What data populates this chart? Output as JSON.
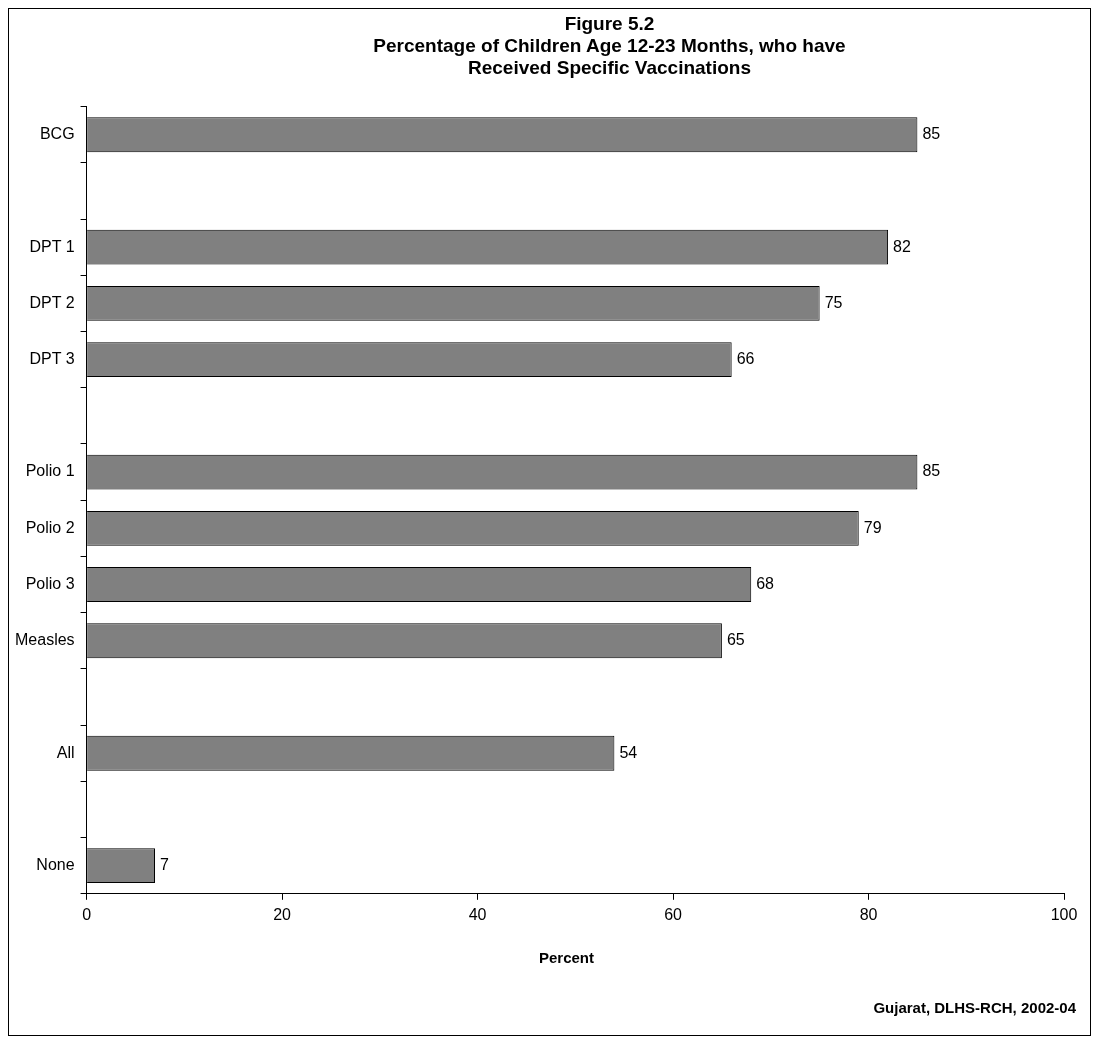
{
  "chart_data": {
    "type": "bar",
    "orientation": "horizontal",
    "title": "Figure 5.2",
    "subtitle": "Percentage of Children Age 12-23 Months, who have Received Specific Vaccinations",
    "xlabel": "Percent",
    "categories": [
      "BCG",
      null,
      "DPT 1",
      "DPT 2",
      "DPT 3",
      null,
      "Polio 1",
      "Polio 2",
      "Polio 3",
      "Measles",
      null,
      "All",
      null,
      "None"
    ],
    "values": [
      85,
      null,
      82,
      75,
      66,
      null,
      85,
      79,
      68,
      65,
      null,
      54,
      null,
      7
    ],
    "color": "#808080",
    "xlim": [
      0,
      100
    ],
    "xticks": [
      0,
      20,
      40,
      60,
      80,
      100
    ],
    "grid": false,
    "legend": false,
    "data_labels": true,
    "annotations": [
      "Gujarat, DLHS-RCH, 2002-04"
    ]
  }
}
